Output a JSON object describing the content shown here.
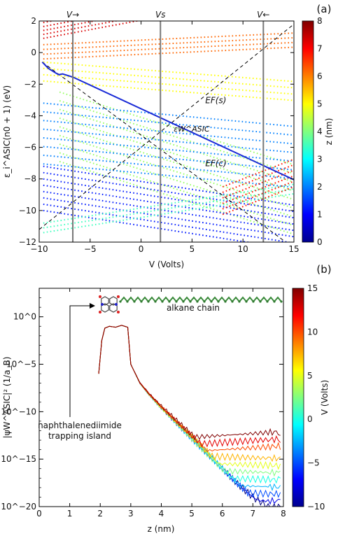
{
  "chart_data": [
    {
      "type": "scatter",
      "panel_label": "(a)",
      "xlabel": "V (Volts)",
      "ylabel": "ε_i^ASIC(n0 + 1) (eV)",
      "xlim": [
        -10,
        15
      ],
      "ylim": [
        -12,
        2
      ],
      "xticks": [
        "−10",
        "−5",
        "0",
        "5",
        "10",
        "15"
      ],
      "yticks": [
        "−12",
        "−10",
        "−8",
        "−6",
        "−4",
        "−2",
        "0",
        "2"
      ],
      "grid": false,
      "vlines": [
        {
          "label": "V→",
          "x": -6.7
        },
        {
          "label": "Vs",
          "x": 1.9
        },
        {
          "label": "V←",
          "x": 12.0
        }
      ],
      "lines": [
        {
          "label": "EF(s)",
          "style": "dashed",
          "points": [
            [
              -10,
              -11.2
            ],
            [
              15,
              1.8
            ]
          ]
        },
        {
          "label": "EF(c)",
          "style": "dashed",
          "points": [
            [
              -9.7,
              -0.6
            ],
            [
              14.2,
              -12
            ]
          ]
        },
        {
          "label": "εW^ASIC",
          "style": "solid",
          "color": "#1a2bd6",
          "points": [
            [
              -9.7,
              -0.6
            ],
            [
              -9.1,
              -1.0
            ],
            [
              -8.6,
              -1.2
            ],
            [
              -8.1,
              -1.4
            ],
            [
              -7.7,
              -1.35
            ],
            [
              -6.7,
              -1.55
            ],
            [
              15,
              -8.05
            ]
          ]
        }
      ],
      "level_groups": [
        {
          "z_nm": 7.3,
          "start": [
            -9.6,
            1.9
          ],
          "slope": 0.12,
          "count": 5,
          "spacing": 0.25
        },
        {
          "z_nm": 6.2,
          "start": [
            -9.6,
            0.5
          ],
          "slope": 0.03,
          "count": 4,
          "spacing": 0.3
        },
        {
          "z_nm": 5.0,
          "start": [
            -9.6,
            -0.6
          ],
          "slope": -0.05,
          "count": 4,
          "spacing": 0.4
        },
        {
          "z_nm": 4.2,
          "start": [
            -8.0,
            -2.5
          ],
          "slope": -0.2,
          "count": 9,
          "spacing": 0.55
        },
        {
          "z_nm": 2.0,
          "start": [
            -9.6,
            -3.2
          ],
          "slope": -0.06,
          "count": 8,
          "spacing": 0.55
        },
        {
          "z_nm": 1.2,
          "start": [
            -9.6,
            -7.2
          ],
          "slope": -0.1,
          "count": 8,
          "spacing": 0.4
        },
        {
          "z_nm": 3.5,
          "start": [
            -9.6,
            -10.8
          ],
          "slope": 0.1,
          "count": 3,
          "spacing": 0.3
        },
        {
          "z_nm": 6.8,
          "start": [
            8.0,
            -8.5
          ],
          "slope": 0.25,
          "count": 6,
          "spacing": 0.35
        }
      ],
      "colorbar": {
        "label": "z (nm)",
        "min": 0,
        "max": 8,
        "ticks": [
          "0",
          "1",
          "2",
          "3",
          "4",
          "5",
          "6",
          "7",
          "8"
        ]
      }
    },
    {
      "type": "line",
      "panel_label": "(b)",
      "xlabel": "z (nm)",
      "ylabel": "|ψW^ASIC|² (1/a_B)",
      "xlim": [
        0,
        8
      ],
      "ylim_log10": [
        -20,
        3
      ],
      "yscale": "log",
      "xticks": [
        "0",
        "1",
        "2",
        "3",
        "4",
        "5",
        "6",
        "7",
        "8"
      ],
      "yticks": [
        "10^0",
        "10^−5",
        "10^−10",
        "10^−15",
        "10^−20"
      ],
      "annotations": [
        "naphthalenediimide",
        "trapping island",
        "alkane chain"
      ],
      "series_V": [
        -10,
        -7.5,
        -5,
        -2.5,
        0,
        2.5,
        5,
        7.5,
        10,
        12.5,
        15
      ],
      "envelope_log10": [
        [
          1.95,
          -6
        ],
        [
          2.05,
          -2.5
        ],
        [
          2.15,
          -1.2
        ],
        [
          2.3,
          -1.0
        ],
        [
          2.5,
          -1.1
        ],
        [
          2.7,
          -0.9
        ],
        [
          2.9,
          -1.1
        ],
        [
          3.0,
          -5.0
        ],
        [
          3.3,
          -7.0
        ],
        [
          3.6,
          -8.2
        ],
        [
          4.0,
          -9.6
        ],
        [
          4.5,
          -11.2
        ],
        [
          5.0,
          -12.8
        ],
        [
          5.5,
          -14.4
        ],
        [
          6.0,
          -16.0
        ],
        [
          6.5,
          -17.6
        ],
        [
          7.0,
          -19.0
        ],
        [
          7.5,
          -20.0
        ],
        [
          7.9,
          -20.0
        ]
      ],
      "colorbar": {
        "label": "V (Volts)",
        "min": -10,
        "max": 15,
        "ticks": [
          "−10",
          "−5",
          "0",
          "5",
          "10",
          "15"
        ]
      }
    }
  ]
}
